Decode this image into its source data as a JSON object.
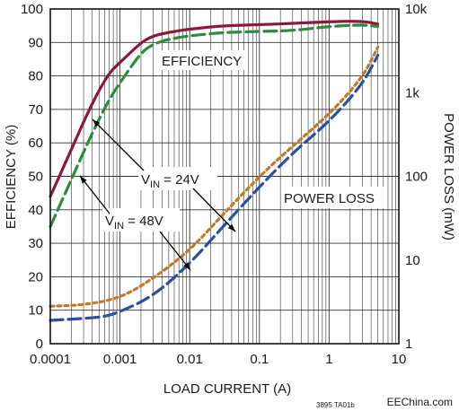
{
  "chart_data": {
    "type": "line",
    "x_scale": "log",
    "x_range": [
      0.0001,
      10
    ],
    "xlabel": "LOAD CURRENT (A)",
    "x_ticks": [
      "0.0001",
      "0.001",
      "0.01",
      "0.1",
      "1",
      "10"
    ],
    "y_left": {
      "label": "EFFICIENCY (%)",
      "range": [
        0,
        100
      ],
      "ticks": [
        "0",
        "10",
        "20",
        "30",
        "40",
        "50",
        "60",
        "70",
        "80",
        "90",
        "100"
      ]
    },
    "y_right": {
      "label": "POWER LOSS (mW)",
      "scale": "log",
      "range": [
        1,
        10000
      ],
      "ticks": [
        "1",
        "10",
        "100",
        "1k",
        "10k"
      ]
    },
    "grid": true,
    "annotations": {
      "efficiency": "EFFICIENCY",
      "power_loss": "POWER LOSS",
      "vin24_main": "V",
      "vin24_sub": "IN",
      "vin24_val": " = 24V",
      "vin48_main": "V",
      "vin48_sub": "IN",
      "vin48_val": " = 48V",
      "figure_id": "3895 TA01b",
      "watermark": "EEChina.com"
    },
    "series": [
      {
        "axis": "left",
        "style": "solid",
        "color": "#8b1a3a",
        "x": [
          0.0001,
          0.0002,
          0.0004,
          0.0007,
          0.001,
          0.002,
          0.003,
          0.005,
          0.01,
          0.03,
          0.1,
          0.3,
          1,
          3,
          5
        ],
        "y": [
          44,
          58,
          72,
          81,
          84,
          90,
          92,
          93,
          94,
          95,
          95.3,
          95.7,
          96.2,
          96.4,
          95.5
        ]
      },
      {
        "axis": "left",
        "style": "dashed",
        "color": "#2e8b3a",
        "x": [
          0.0001,
          0.0002,
          0.0004,
          0.0007,
          0.001,
          0.002,
          0.003,
          0.005,
          0.01,
          0.03,
          0.1,
          0.3,
          1,
          3,
          5
        ],
        "y": [
          35,
          49,
          63,
          73,
          78,
          87,
          89.5,
          91,
          92,
          93,
          93.3,
          93.5,
          94.8,
          95.3,
          94.8
        ]
      },
      {
        "axis": "right",
        "style": "dotted",
        "color": "#c07a2a",
        "x": [
          0.0001,
          0.0003,
          0.001,
          0.003,
          0.01,
          0.03,
          0.1,
          0.3,
          1,
          3,
          5
        ],
        "y": [
          2.8,
          2.9,
          3.5,
          6,
          13,
          35,
          100,
          230,
          550,
          1500,
          3500
        ]
      },
      {
        "axis": "right",
        "style": "dashed",
        "color": "#2c4fa0",
        "x": [
          0.0001,
          0.0003,
          0.0006,
          0.001,
          0.003,
          0.01,
          0.03,
          0.1,
          0.3,
          1,
          3,
          5
        ],
        "y": [
          1.9,
          2,
          2.1,
          2.4,
          3.7,
          9,
          25,
          75,
          190,
          450,
          1250,
          2800
        ]
      }
    ]
  }
}
